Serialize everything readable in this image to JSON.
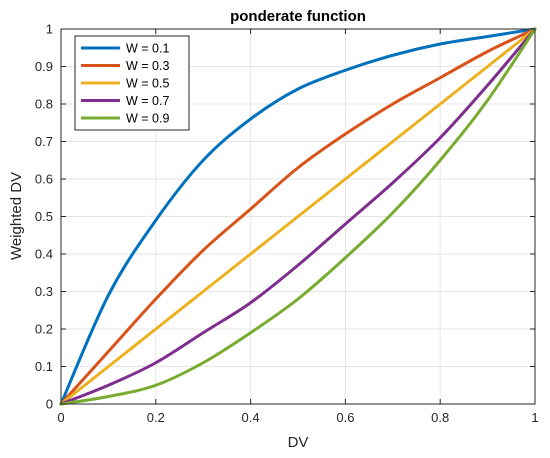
{
  "chart_data": {
    "type": "line",
    "title": "ponderate function",
    "xlabel": "DV",
    "ylabel": "Weighted DV",
    "xlim": [
      0,
      1
    ],
    "ylim": [
      0,
      1
    ],
    "xticks": [
      0,
      0.2,
      0.4,
      0.6,
      0.8,
      1
    ],
    "xtick_labels": [
      "0",
      "0.2",
      "0.4",
      "0.6",
      "0.8",
      "1"
    ],
    "yticks": [
      0,
      0.1,
      0.2,
      0.3,
      0.4,
      0.5,
      0.6,
      0.7,
      0.8,
      0.9,
      1
    ],
    "ytick_labels": [
      "0",
      "0.1",
      "0.2",
      "0.3",
      "0.4",
      "0.5",
      "0.6",
      "0.7",
      "0.8",
      "0.9",
      "1"
    ],
    "grid": true,
    "legend_position": "top-left",
    "x": [
      0,
      0.1,
      0.2,
      0.3,
      0.4,
      0.5,
      0.6,
      0.7,
      0.8,
      0.9,
      1
    ],
    "series": [
      {
        "name": "W = 0.1",
        "color": "#0072BD",
        "values": [
          0,
          0.29,
          0.49,
          0.65,
          0.76,
          0.84,
          0.89,
          0.93,
          0.96,
          0.98,
          1
        ]
      },
      {
        "name": "W = 0.3",
        "color": "#D95319",
        "values": [
          0,
          0.14,
          0.28,
          0.41,
          0.52,
          0.63,
          0.72,
          0.8,
          0.87,
          0.94,
          1
        ]
      },
      {
        "name": "W = 0.5",
        "color": "#EDB120",
        "values": [
          0,
          0.1,
          0.2,
          0.3,
          0.4,
          0.5,
          0.6,
          0.7,
          0.8,
          0.9,
          1
        ]
      },
      {
        "name": "W = 0.7",
        "color": "#7E2F8E",
        "values": [
          0,
          0.05,
          0.11,
          0.19,
          0.27,
          0.37,
          0.48,
          0.59,
          0.71,
          0.85,
          1
        ]
      },
      {
        "name": "W = 0.9",
        "color": "#77AC30",
        "values": [
          0,
          0.02,
          0.05,
          0.11,
          0.19,
          0.28,
          0.39,
          0.51,
          0.65,
          0.81,
          1
        ]
      }
    ]
  }
}
